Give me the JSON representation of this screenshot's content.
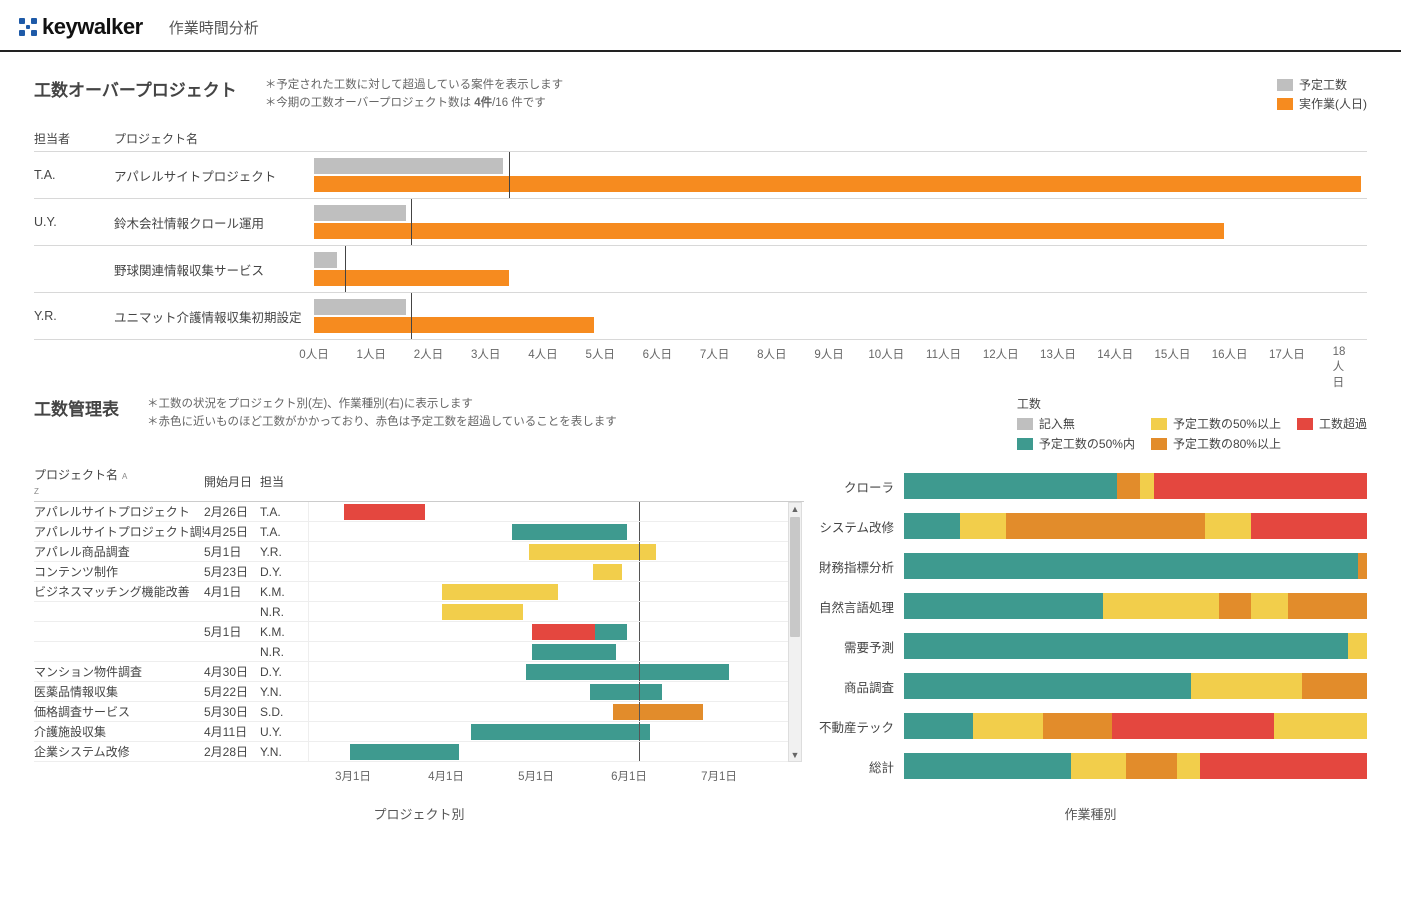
{
  "brand": {
    "name": "keywalker"
  },
  "page_title": "作業時間分析",
  "colors": {
    "planned": "#bfbfbf",
    "actual": "#f68b1f",
    "none": "#bfbfbf",
    "within50": "#3e9a8f",
    "over50": "#f2ce4b",
    "over80": "#e28c2b",
    "overrun": "#e4473f",
    "divider": "#dddddd",
    "today_line": "#555555"
  },
  "legend_topright": {
    "items": [
      {
        "swatch": "#bfbfbf",
        "label": "予定工数"
      },
      {
        "swatch": "#f68b1f",
        "label": "実作業(人日)"
      }
    ]
  },
  "overrun": {
    "title": "工数オーバープロジェクト",
    "note1": "＊予定された工数に対して超過している案件を表示します",
    "note2_pre": "＊今期の工数オーバープロジェクト数は ",
    "note2_count": "4件",
    "note2_post": "/16 件です",
    "col_owner": "担当者",
    "col_project": "プロジェクト名",
    "x_max": 18.4,
    "x_ticks": [
      0,
      1,
      2,
      3,
      4,
      5,
      6,
      7,
      8,
      9,
      10,
      11,
      12,
      13,
      14,
      15,
      16,
      17,
      18
    ],
    "x_tick_suffix": "人日",
    "rows": [
      {
        "owner": "T.A.",
        "project": "アパレルサイトプロジェクト",
        "planned": 3.3,
        "actual": 18.3,
        "today_at": 3.4
      },
      {
        "owner": "U.Y.",
        "project": "鈴木会社情報クロール運用",
        "planned": 1.6,
        "actual": 15.9,
        "today_at": 1.7
      },
      {
        "owner": "",
        "project": "野球関連情報収集サービス",
        "planned": 0.4,
        "actual": 3.4,
        "today_at": 0.55
      },
      {
        "owner": "Y.R.",
        "project": "ユニマット介護情報収集初期設定",
        "planned": 1.6,
        "actual": 4.9,
        "today_at": 1.7
      }
    ]
  },
  "mgmt": {
    "title": "工数管理表",
    "note1": "＊工数の状況をプロジェクト別(左)、作業種別(右)に表示します",
    "note2": "＊赤色に近いものほど工数がかかっており、赤色は予定工数を超過していることを表します",
    "caption_left": "プロジェクト別",
    "caption_right": "作業種別"
  },
  "legend_mh": {
    "title": "工数",
    "items": [
      {
        "swatch": "#bfbfbf",
        "label": "記入無"
      },
      {
        "swatch": "#f2ce4b",
        "label": "予定工数の50%以上"
      },
      {
        "swatch": "#e4473f",
        "label": "工数超過"
      },
      {
        "swatch": "#3e9a8f",
        "label": "予定工数の50%内"
      },
      {
        "swatch": "#e28c2b",
        "label": "予定工数の80%以上"
      }
    ]
  },
  "gantt": {
    "cols": {
      "project": "プロジェクト名",
      "start": "開始月日",
      "owner": "担当"
    },
    "sort_glyph": "A\nZ",
    "x_min": 0,
    "x_max": 160,
    "x_ticks": [
      {
        "pos": 15,
        "label": "3月1日"
      },
      {
        "pos": 46,
        "label": "4月1日"
      },
      {
        "pos": 76,
        "label": "5月1日"
      },
      {
        "pos": 107,
        "label": "6月1日"
      },
      {
        "pos": 137,
        "label": "7月1日"
      }
    ],
    "today_pos": 114,
    "rows": [
      {
        "project": "アパレルサイトプロジェクト",
        "start": "2月26日",
        "owner": "T.A.",
        "bars": [
          {
            "from": 12,
            "to": 40,
            "c": "overrun"
          }
        ]
      },
      {
        "project": "アパレルサイトプロジェクト調整",
        "start": "4月25日",
        "owner": "T.A.",
        "bars": [
          {
            "from": 70,
            "to": 110,
            "c": "within50"
          }
        ]
      },
      {
        "project": "アパレル商品調査",
        "start": "5月1日",
        "owner": "Y.R.",
        "bars": [
          {
            "from": 76,
            "to": 120,
            "c": "over50"
          }
        ]
      },
      {
        "project": "コンテンツ制作",
        "start": "5月23日",
        "owner": "D.Y.",
        "bars": [
          {
            "from": 98,
            "to": 108,
            "c": "over50"
          }
        ]
      },
      {
        "project": "ビジネスマッチング機能改善",
        "start": "4月1日",
        "owner": "K.M.",
        "bars": [
          {
            "from": 46,
            "to": 86,
            "c": "over50"
          }
        ]
      },
      {
        "project": "",
        "start": "",
        "owner": "N.R.",
        "bars": [
          {
            "from": 46,
            "to": 74,
            "c": "over50"
          }
        ]
      },
      {
        "project": "",
        "start": "5月1日",
        "owner": "K.M.",
        "bars": [
          {
            "from": 77,
            "to": 99,
            "c": "overrun"
          },
          {
            "from": 99,
            "to": 110,
            "c": "within50"
          }
        ]
      },
      {
        "project": "",
        "start": "",
        "owner": "N.R.",
        "bars": [
          {
            "from": 77,
            "to": 106,
            "c": "within50"
          }
        ]
      },
      {
        "project": "マンション物件調査",
        "start": "4月30日",
        "owner": "D.Y.",
        "bars": [
          {
            "from": 75,
            "to": 145,
            "c": "within50"
          }
        ]
      },
      {
        "project": "医薬品情報収集",
        "start": "5月22日",
        "owner": "Y.N.",
        "bars": [
          {
            "from": 97,
            "to": 122,
            "c": "within50"
          }
        ]
      },
      {
        "project": "価格調査サービス",
        "start": "5月30日",
        "owner": "S.D.",
        "bars": [
          {
            "from": 105,
            "to": 136,
            "c": "over80"
          }
        ]
      },
      {
        "project": "介護施設収集",
        "start": "4月11日",
        "owner": "U.Y.",
        "bars": [
          {
            "from": 56,
            "to": 118,
            "c": "within50"
          }
        ]
      },
      {
        "project": "企業システム改修",
        "start": "2月28日",
        "owner": "Y.N.",
        "bars": [
          {
            "from": 14,
            "to": 52,
            "c": "within50"
          }
        ]
      }
    ]
  },
  "stacked": {
    "rows": [
      {
        "label": "クローラ",
        "segs": [
          {
            "c": "within50",
            "w": 46
          },
          {
            "c": "over80",
            "w": 5
          },
          {
            "c": "over50",
            "w": 3
          },
          {
            "c": "overrun",
            "w": 46
          }
        ]
      },
      {
        "label": "システム改修",
        "segs": [
          {
            "c": "within50",
            "w": 12
          },
          {
            "c": "over50",
            "w": 10
          },
          {
            "c": "over80",
            "w": 43
          },
          {
            "c": "over50",
            "w": 10
          },
          {
            "c": "overrun",
            "w": 25
          }
        ]
      },
      {
        "label": "財務指標分析",
        "segs": [
          {
            "c": "within50",
            "w": 98
          },
          {
            "c": "over80",
            "w": 2
          }
        ]
      },
      {
        "label": "自然言語処理",
        "segs": [
          {
            "c": "within50",
            "w": 43
          },
          {
            "c": "over50",
            "w": 25
          },
          {
            "c": "over80",
            "w": 7
          },
          {
            "c": "over50",
            "w": 8
          },
          {
            "c": "over80",
            "w": 17
          }
        ]
      },
      {
        "label": "需要予測",
        "segs": [
          {
            "c": "within50",
            "w": 96
          },
          {
            "c": "over50",
            "w": 4
          }
        ]
      },
      {
        "label": "商品調査",
        "segs": [
          {
            "c": "within50",
            "w": 62
          },
          {
            "c": "over50",
            "w": 24
          },
          {
            "c": "over80",
            "w": 14
          }
        ]
      },
      {
        "label": "不動産テック",
        "segs": [
          {
            "c": "within50",
            "w": 15
          },
          {
            "c": "over50",
            "w": 15
          },
          {
            "c": "over80",
            "w": 15
          },
          {
            "c": "overrun",
            "w": 35
          },
          {
            "c": "over50",
            "w": 20
          }
        ]
      },
      {
        "label": "総計",
        "segs": [
          {
            "c": "within50",
            "w": 36
          },
          {
            "c": "over50",
            "w": 12
          },
          {
            "c": "over80",
            "w": 11
          },
          {
            "c": "over50",
            "w": 5
          },
          {
            "c": "overrun",
            "w": 36
          }
        ]
      }
    ]
  }
}
